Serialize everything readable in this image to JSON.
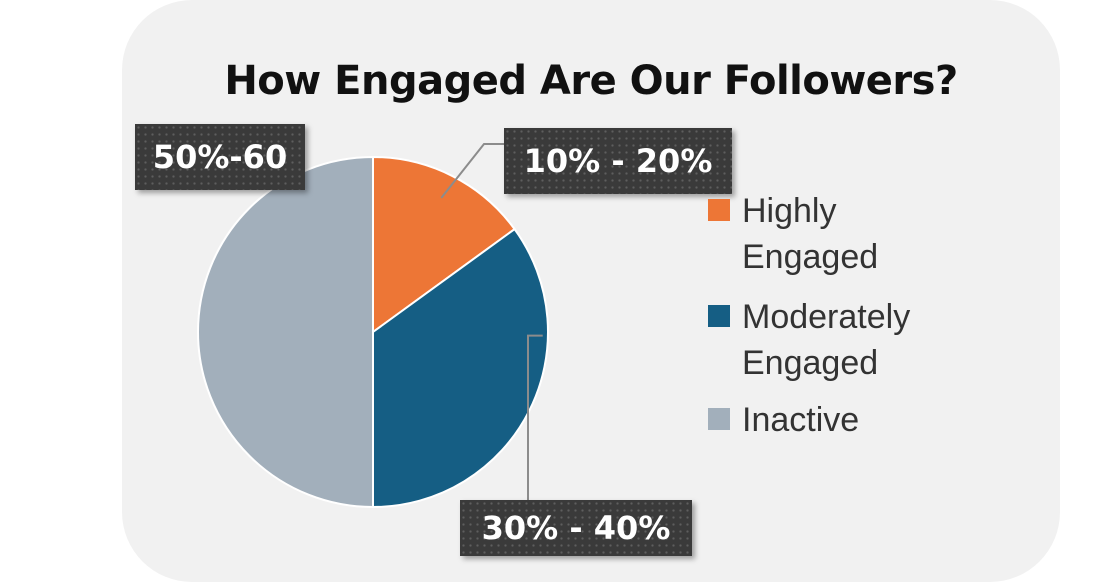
{
  "chart_data": {
    "type": "pie",
    "title": "How Engaged Are Our Followers?",
    "slices": [
      {
        "label": "Highly Engaged",
        "value": 15,
        "data_label": "10% - 20%",
        "color": "#ed7636"
      },
      {
        "label": "Moderately Engaged",
        "value": 35,
        "data_label": "30% - 40%",
        "color": "#155e84"
      },
      {
        "label": "Inactive",
        "value": 50,
        "data_label": "50%-60",
        "color": "#a2afbb"
      }
    ],
    "legend_position": "right"
  }
}
